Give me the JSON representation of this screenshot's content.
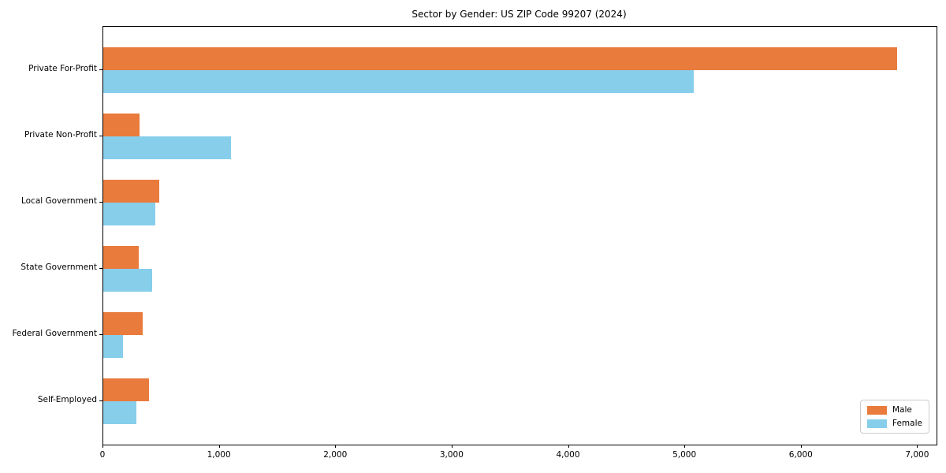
{
  "chart_data": {
    "type": "bar",
    "orientation": "horizontal",
    "title": "Sector by Gender: US ZIP Code 99207 (2024)",
    "categories": [
      "Private For-Profit",
      "Private Non-Profit",
      "Local Government",
      "State Government",
      "Federal Government",
      "Self-Employed"
    ],
    "series": [
      {
        "name": "Male",
        "color": "#E97B3C",
        "values": [
          6820,
          310,
          480,
          305,
          340,
          390
        ]
      },
      {
        "name": "Female",
        "color": "#87CEEB",
        "values": [
          5070,
          1100,
          450,
          420,
          170,
          285
        ]
      }
    ],
    "xlim": [
      0,
      7160
    ],
    "x_ticks": [
      0,
      1000,
      2000,
      3000,
      4000,
      5000,
      6000,
      7000
    ],
    "x_tick_labels": [
      "0",
      "1,000",
      "2,000",
      "3,000",
      "4,000",
      "5,000",
      "6,000",
      "7,000"
    ],
    "xlabel": "",
    "ylabel": "",
    "grid": false,
    "legend_position": "lower right",
    "colors": {
      "axis": "#000000",
      "background": "#ffffff"
    }
  }
}
